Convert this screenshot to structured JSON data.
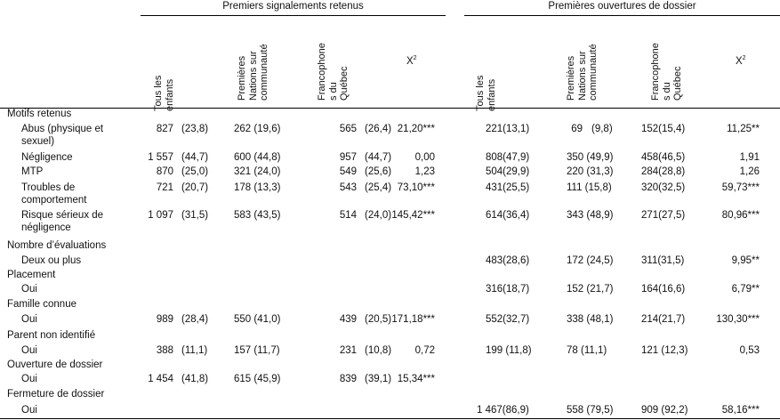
{
  "groups": {
    "left": "Premiers signalements retenus",
    "right": "Premières ouvertures de dossier"
  },
  "columns": {
    "all": "Tous les enfants",
    "fn": "Premières Nations sur communauté",
    "fr": "Francophone s du Québec",
    "chi": "X",
    "chi_sup": "2"
  },
  "sections": {
    "motifs": "Motifs retenus",
    "evaluations": "Nombre d’évaluations",
    "placement": "Placement",
    "famille": "Famille connue",
    "parent": "Parent non identifié",
    "ouverture": "Ouverture de dossier",
    "fermeture": "Fermeture de dossier"
  },
  "rows": {
    "abus": {
      "l1": "Abus (physique et",
      "l2": "sexuel)",
      "a1": "827",
      "p1": "(23,8)",
      "b1": "262 (19,6)",
      "c1": "565",
      "q1": "(26,4)",
      "x1": "21,20***",
      "a2": "221(13,1)",
      "b2": "69",
      "q2b": "(9,8)",
      "c2": "152(15,4)",
      "x2": "11,25**"
    },
    "negligence": {
      "l1": "Négligence",
      "a1": "1 557",
      "p1": "(44,7)",
      "b1": "600 (44,8)",
      "c1": "957",
      "q1": "(44,7)",
      "x1": "0,00",
      "a2": "808(47,9)",
      "b2": "350 (49,9)",
      "c2": "458(46,5)",
      "x2": "1,91"
    },
    "mtp": {
      "l1": "MTP",
      "a1": "870",
      "p1": "(25,0)",
      "b1": "321 (24,0)",
      "c1": "549",
      "q1": "(25,6)",
      "x1": "1,23",
      "a2": "504(29,9)",
      "b2": "220 (31,3)",
      "c2": "284(28,8)",
      "x2": "1,26"
    },
    "troubles": {
      "l1": "Troubles de",
      "l2": "comportement",
      "a1": "721",
      "p1": "(20,7)",
      "b1": "178 (13,3)",
      "c1": "543",
      "q1": "(25,4)",
      "x1": "73,10***",
      "a2": "431(25,5)",
      "b2": "111 (15,8)",
      "c2": "320(32,5)",
      "x2": "59,73***"
    },
    "risque": {
      "l1": "Risque sérieux de",
      "l2": "négligence",
      "a1": "1 097",
      "p1": "(31,5)",
      "b1": "583 (43,5)",
      "c1": "514",
      "q1": "(24,0)",
      "x1": "145,42***",
      "a2": "614(36,4)",
      "b2": "343 (48,9)",
      "c2": "271(27,5)",
      "x2": "80,96***"
    },
    "deux": {
      "l1": "Deux ou plus",
      "a2": "483(28,6)",
      "b2": "172 (24,5)",
      "c2": "311(31,5)",
      "x2": "9,95**"
    },
    "placement_oui": {
      "l1": "Oui",
      "a2": "316(18,7)",
      "b2": "152 (21,7)",
      "c2": "164(16,6)",
      "x2": "6,79**"
    },
    "famille_oui": {
      "l1": "Oui",
      "a1": "989",
      "p1": "(28,4)",
      "b1": "550 (41,0)",
      "c1": "439",
      "q1": "(20,5)",
      "x1": "171,18***",
      "a2": "552(32,7)",
      "b2": "338 (48,1)",
      "c2": "214(21,7)",
      "x2": "130,30***"
    },
    "parent_oui": {
      "l1": "Oui",
      "a1": "388",
      "p1": "(11,1)",
      "b1": "157 (11,7)",
      "c1": "231",
      "q1": "(10,8)",
      "x1": "0,72",
      "a2": "199 (11,8)",
      "b2": "78 (11,1)",
      "c2": "121 (12,3)",
      "x2": "0,53"
    },
    "ouverture_oui": {
      "l1": "Oui",
      "a1": "1 454",
      "p1": "(41,8)",
      "b1": "615 (45,9)",
      "c1": "839",
      "q1": "(39,1)",
      "x1": "15,34***"
    },
    "fermeture_oui": {
      "l1": "Oui",
      "a2": "1 467(86,9)",
      "b2": "558 (79,5)",
      "c2": "909 (92,2)",
      "x2": "58,16***"
    }
  }
}
